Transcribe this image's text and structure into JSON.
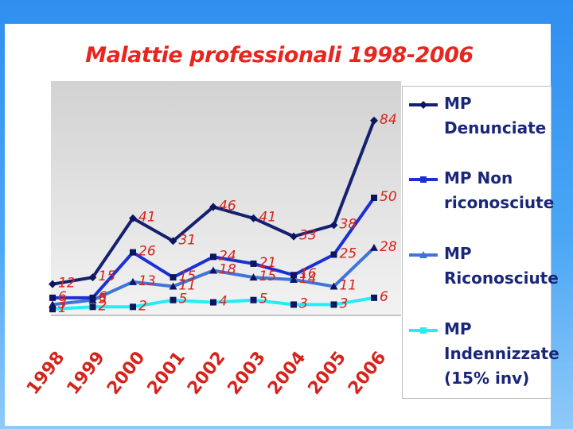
{
  "chart_data": {
    "type": "line",
    "title": "Malattie professionali 1998-2006",
    "categories": [
      "1998",
      "1999",
      "2000",
      "2001",
      "2002",
      "2003",
      "2004",
      "2005",
      "2006"
    ],
    "series": [
      {
        "name": "MP Denunciate",
        "values": [
          12,
          15,
          41,
          31,
          46,
          41,
          33,
          38,
          84
        ],
        "color": "#15206e",
        "marker": "diamond"
      },
      {
        "name": "MP Non riconosciute",
        "values": [
          6,
          6,
          26,
          15,
          24,
          21,
          16,
          25,
          50
        ],
        "color": "#1a2fd6",
        "marker": "square"
      },
      {
        "name": "MP Riconosciute",
        "values": [
          3,
          5,
          13,
          11,
          18,
          15,
          14,
          11,
          28
        ],
        "color": "#3f74d9",
        "marker": "triangle"
      },
      {
        "name": "MP Indennizzate (15% inv)",
        "values": [
          1,
          2,
          2,
          5,
          4,
          5,
          3,
          3,
          6
        ],
        "color": "#22eef5",
        "marker": "square"
      }
    ],
    "ylim": [
      0,
      90
    ],
    "grid": false,
    "legend_position": "right",
    "data_label_color": "#d6231c",
    "tick_label_color": "#d6231c",
    "plot_background": "#d9d9d9"
  }
}
